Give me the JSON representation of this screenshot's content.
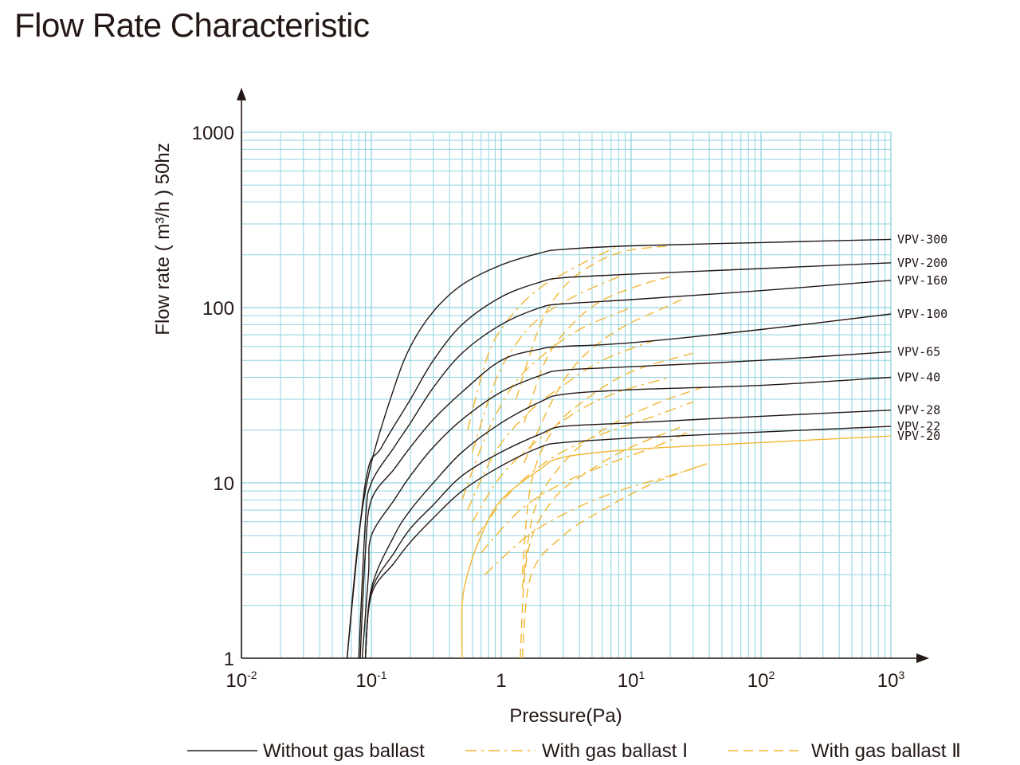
{
  "chart_data": {
    "type": "line",
    "title": "Flow Rate Characteristic",
    "xlabel": "Pressure(Pa)",
    "ylabel": "Flow rate ( m³/h ) 50hz",
    "x_scale": "log",
    "y_scale": "log",
    "xlim": [
      0.01,
      1000
    ],
    "ylim": [
      1,
      1000
    ],
    "grid": true,
    "x_ticks": [
      {
        "value": 0.01,
        "base": "10",
        "exp": "-2"
      },
      {
        "value": 0.1,
        "base": "10",
        "exp": "-1"
      },
      {
        "value": 1,
        "base": "1",
        "exp": ""
      },
      {
        "value": 10,
        "base": "10",
        "exp": "1"
      },
      {
        "value": 100,
        "base": "10",
        "exp": "2"
      },
      {
        "value": 1000,
        "base": "10",
        "exp": "3"
      }
    ],
    "y_ticks": [
      {
        "value": 1,
        "label": "1"
      },
      {
        "value": 10,
        "label": "10"
      },
      {
        "value": 100,
        "label": "100"
      },
      {
        "value": 1000,
        "label": "1000"
      }
    ],
    "colors": {
      "grid": "#8fd3df",
      "axis": "#231815",
      "curve": "#231815",
      "ballast": "#f2b632"
    },
    "legend": {
      "placement": "bottom",
      "items": [
        {
          "label": "Without gas ballast",
          "style": "solid"
        },
        {
          "label": "With gas ballast Ⅰ",
          "style": "dash-dot"
        },
        {
          "label": "With gas ballast Ⅱ",
          "style": "dashed"
        }
      ]
    },
    "series": [
      {
        "name": "VPV-300",
        "style": "solid",
        "points": [
          [
            0.065,
            1
          ],
          [
            0.08,
            5
          ],
          [
            0.1,
            13
          ],
          [
            0.15,
            35
          ],
          [
            0.2,
            60
          ],
          [
            0.3,
            95
          ],
          [
            0.5,
            135
          ],
          [
            1,
            175
          ],
          [
            2,
            205
          ],
          [
            3,
            215
          ],
          [
            10,
            225
          ],
          [
            100,
            235
          ],
          [
            1000,
            245
          ]
        ]
      },
      {
        "name": "VPV-200",
        "style": "solid",
        "points": [
          [
            0.065,
            1
          ],
          [
            0.09,
            10
          ],
          [
            0.12,
            16
          ],
          [
            0.2,
            30
          ],
          [
            0.3,
            50
          ],
          [
            0.5,
            80
          ],
          [
            1,
            115
          ],
          [
            2,
            140
          ],
          [
            3,
            148
          ],
          [
            10,
            155
          ],
          [
            100,
            167
          ],
          [
            1000,
            180
          ]
        ]
      },
      {
        "name": "VPV-160",
        "style": "solid",
        "points": [
          [
            0.08,
            1
          ],
          [
            0.09,
            6
          ],
          [
            0.1,
            10
          ],
          [
            0.15,
            16
          ],
          [
            0.2,
            22
          ],
          [
            0.3,
            35
          ],
          [
            0.5,
            55
          ],
          [
            1,
            80
          ],
          [
            2,
            100
          ],
          [
            3,
            105
          ],
          [
            10,
            111
          ],
          [
            100,
            125
          ],
          [
            1000,
            143
          ]
        ]
      },
      {
        "name": "VPV-100",
        "style": "solid",
        "points": [
          [
            0.082,
            1
          ],
          [
            0.09,
            4
          ],
          [
            0.1,
            8
          ],
          [
            0.15,
            12
          ],
          [
            0.2,
            16
          ],
          [
            0.3,
            23
          ],
          [
            0.5,
            33
          ],
          [
            1,
            50
          ],
          [
            2,
            58
          ],
          [
            3,
            60
          ],
          [
            10,
            63
          ],
          [
            100,
            75
          ],
          [
            1000,
            92
          ]
        ]
      },
      {
        "name": "VPV-65",
        "style": "solid",
        "points": [
          [
            0.085,
            1
          ],
          [
            0.095,
            3
          ],
          [
            0.1,
            5
          ],
          [
            0.15,
            8
          ],
          [
            0.2,
            11
          ],
          [
            0.3,
            16
          ],
          [
            0.5,
            23
          ],
          [
            1,
            33
          ],
          [
            2,
            41
          ],
          [
            3,
            44
          ],
          [
            10,
            46
          ],
          [
            100,
            50
          ],
          [
            1000,
            56
          ]
        ]
      },
      {
        "name": "VPV-40",
        "style": "solid",
        "points": [
          [
            0.09,
            1
          ],
          [
            0.1,
            2.5
          ],
          [
            0.15,
            5
          ],
          [
            0.2,
            7
          ],
          [
            0.3,
            10
          ],
          [
            0.5,
            15
          ],
          [
            1,
            22
          ],
          [
            2,
            29
          ],
          [
            3,
            32
          ],
          [
            10,
            34
          ],
          [
            100,
            36
          ],
          [
            1000,
            40
          ]
        ]
      },
      {
        "name": "VPV-28",
        "style": "solid",
        "points": [
          [
            0.09,
            1
          ],
          [
            0.1,
            2.4
          ],
          [
            0.15,
            4
          ],
          [
            0.2,
            5.5
          ],
          [
            0.3,
            7.5
          ],
          [
            0.5,
            11
          ],
          [
            1,
            15
          ],
          [
            2,
            19
          ],
          [
            3,
            21
          ],
          [
            10,
            22
          ],
          [
            100,
            24
          ],
          [
            1000,
            26
          ]
        ]
      },
      {
        "name": "VPV-22",
        "style": "solid",
        "points": [
          [
            0.09,
            1
          ],
          [
            0.1,
            2.3
          ],
          [
            0.15,
            3.5
          ],
          [
            0.2,
            4.6
          ],
          [
            0.3,
            6.3
          ],
          [
            0.5,
            9
          ],
          [
            1,
            12.5
          ],
          [
            2,
            16
          ],
          [
            3,
            17
          ],
          [
            10,
            18
          ],
          [
            100,
            19.5
          ],
          [
            1000,
            21
          ]
        ]
      },
      {
        "name": "VPV-20",
        "style": "ballast-solid",
        "points": [
          [
            0.5,
            1
          ],
          [
            0.5,
            2
          ],
          [
            0.55,
            3
          ],
          [
            0.7,
            5
          ],
          [
            1,
            8
          ],
          [
            2,
            12
          ],
          [
            3,
            14
          ],
          [
            10,
            15.5
          ],
          [
            100,
            17
          ],
          [
            1000,
            18.5
          ]
        ]
      }
    ],
    "ballast_1": [
      [
        [
          0.55,
          20
        ],
        [
          0.8,
          55
        ],
        [
          1.2,
          90
        ],
        [
          2,
          130
        ],
        [
          4,
          175
        ],
        [
          8,
          225
        ]
      ],
      [
        [
          0.6,
          15
        ],
        [
          0.9,
          38
        ],
        [
          1.3,
          62
        ],
        [
          2,
          88
        ],
        [
          4,
          120
        ],
        [
          9,
          155
        ]
      ],
      [
        [
          0.5,
          8
        ],
        [
          0.75,
          18
        ],
        [
          1.2,
          35
        ],
        [
          2,
          52
        ],
        [
          4,
          75
        ],
        [
          10,
          100
        ]
      ],
      [
        [
          0.55,
          7
        ],
        [
          0.9,
          15
        ],
        [
          1.6,
          25
        ],
        [
          3,
          36
        ],
        [
          6,
          50
        ],
        [
          15,
          65
        ]
      ],
      [
        [
          0.6,
          6
        ],
        [
          1,
          11
        ],
        [
          2,
          18
        ],
        [
          4,
          26
        ],
        [
          8,
          33
        ],
        [
          20,
          40
        ]
      ],
      [
        [
          0.65,
          5
        ],
        [
          1.2,
          9
        ],
        [
          2.5,
          14
        ],
        [
          6,
          19
        ],
        [
          15,
          24
        ],
        [
          30,
          29
        ]
      ],
      [
        [
          0.7,
          4
        ],
        [
          1.4,
          7
        ],
        [
          3,
          10
        ],
        [
          7,
          13
        ],
        [
          15,
          16
        ],
        [
          30,
          20
        ]
      ],
      [
        [
          0.75,
          3
        ],
        [
          1.6,
          5
        ],
        [
          3.5,
          7
        ],
        [
          8,
          9
        ],
        [
          20,
          11
        ],
        [
          40,
          13
        ]
      ]
    ],
    "ballast_2": [
      [
        [
          1.3,
          30
        ],
        [
          2,
          80
        ],
        [
          3,
          130
        ],
        [
          5,
          175
        ],
        [
          9,
          210
        ],
        [
          20,
          225
        ]
      ],
      [
        [
          1.5,
          22
        ],
        [
          2.2,
          50
        ],
        [
          3.5,
          80
        ],
        [
          6,
          110
        ],
        [
          12,
          135
        ],
        [
          20,
          150
        ]
      ],
      [
        [
          1.5,
          13
        ],
        [
          2.5,
          30
        ],
        [
          4,
          50
        ],
        [
          8,
          75
        ],
        [
          18,
          100
        ],
        [
          25,
          112
        ]
      ],
      [
        [
          1.45,
          3
        ],
        [
          1.7,
          10
        ],
        [
          2.5,
          20
        ],
        [
          4.5,
          30
        ],
        [
          10,
          43
        ],
        [
          30,
          55
        ]
      ],
      [
        [
          1.45,
          2.5
        ],
        [
          1.8,
          7
        ],
        [
          3,
          13
        ],
        [
          6,
          20
        ],
        [
          15,
          28
        ],
        [
          35,
          35
        ]
      ],
      [
        [
          1.4,
          1
        ],
        [
          1.6,
          4
        ],
        [
          2.5,
          8
        ],
        [
          5,
          12
        ],
        [
          10,
          16
        ],
        [
          25,
          21
        ]
      ],
      [
        [
          1.45,
          1
        ],
        [
          1.7,
          3
        ],
        [
          3,
          5
        ],
        [
          6,
          7
        ],
        [
          15,
          10
        ],
        [
          40,
          13
        ]
      ]
    ]
  }
}
